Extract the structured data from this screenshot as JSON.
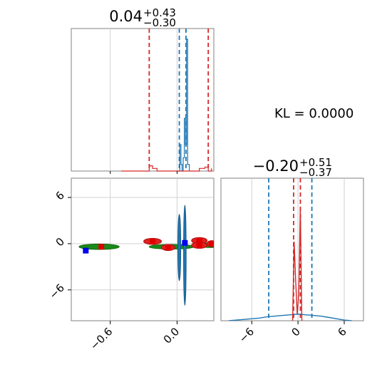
{
  "chart_data": [
    {
      "type": "histogram",
      "panel": "top-left",
      "title_main": "0.04",
      "title_sup": "+0.43",
      "title_sub": "−0.30",
      "xlim": [
        -0.95,
        0.33
      ],
      "grid": true,
      "blue_quantile_lines": [
        0.02,
        0.08
      ],
      "red_quantile_lines": [
        -0.25,
        0.28
      ],
      "series": [
        {
          "color": "#1f77b4",
          "x": [
            0.0,
            0.015,
            0.025,
            0.035,
            0.045,
            0.055,
            0.065,
            0.075,
            0.085,
            0.095,
            0.11
          ],
          "y": [
            0.0,
            0.0,
            0.2,
            0.05,
            0.0,
            0.1,
            0.4,
            0.2,
            1.0,
            0.05,
            0.0
          ]
        },
        {
          "color": "#d62728",
          "x": [
            -0.5,
            -0.35,
            -0.25,
            -0.22,
            -0.18,
            0.18,
            0.2,
            0.25,
            0.28,
            0.31
          ],
          "y": [
            0.0,
            0.0,
            0.04,
            0.02,
            0.0,
            0.0,
            0.02,
            0.03,
            0.0,
            0.02
          ]
        }
      ]
    },
    {
      "type": "scatter",
      "panel": "bottom-left",
      "xlim": [
        -0.95,
        0.33
      ],
      "ylim": [
        -10,
        8.5
      ],
      "xticks": [
        "−0.6",
        "0.0"
      ],
      "xtick_values": [
        -0.6,
        0.0
      ],
      "yticks": [
        "6",
        "0",
        "−6"
      ],
      "ytick_values": [
        6,
        0,
        -6
      ],
      "grid": true,
      "green_ellipses": [
        {
          "cx": -0.7,
          "cy": -0.4,
          "rx": 0.18,
          "ry": 0.35
        },
        {
          "cx": -0.05,
          "cy": -0.4,
          "rx": 0.2,
          "ry": 0.3
        },
        {
          "cx": 0.3,
          "cy": -0.2,
          "rx": 0.1,
          "ry": 0.3
        }
      ],
      "red_ellipses": [
        {
          "cx": -0.22,
          "cy": 0.3,
          "rx": 0.08,
          "ry": 0.4
        },
        {
          "cx": -0.08,
          "cy": -0.5,
          "rx": 0.06,
          "ry": 0.4
        },
        {
          "cx": 0.2,
          "cy": 0.4,
          "rx": 0.07,
          "ry": 0.4
        },
        {
          "cx": 0.2,
          "cy": -0.2,
          "rx": 0.07,
          "ry": 0.4
        },
        {
          "cx": 0.31,
          "cy": 0.0,
          "rx": 0.04,
          "ry": 0.4
        }
      ],
      "red_points": [
        [
          -0.22,
          0.3
        ],
        [
          -0.08,
          -0.5
        ],
        [
          0.2,
          0.4
        ],
        [
          0.2,
          -0.2
        ],
        [
          0.31,
          0.0
        ],
        [
          -0.68,
          -0.4
        ]
      ],
      "blue_points": [
        [
          -0.82,
          -0.9
        ],
        [
          0.07,
          0.1
        ]
      ],
      "blue_ellipse": {
        "cx": 0.02,
        "cy": -0.5,
        "rx": 0.01,
        "ry": 4.3
      },
      "blue_ellipse2": {
        "cx": 0.07,
        "cy": -1.5,
        "rx": 0.008,
        "ry": 6.5
      }
    },
    {
      "type": "histogram",
      "panel": "bottom-right",
      "title_main": "−0.20",
      "title_sup": "+0.51",
      "title_sub": "−0.37",
      "xlim": [
        -10,
        8.5
      ],
      "xticks": [
        "−6",
        "0",
        "6"
      ],
      "xtick_values": [
        -6,
        0,
        6
      ],
      "grid": true,
      "blue_quantile_lines": [
        -3.8,
        1.8
      ],
      "red_quantile_lines": [
        -0.57,
        0.31
      ],
      "series": [
        {
          "color": "#1f77b4",
          "x": [
            -9,
            -8,
            -7,
            -6,
            -5,
            -4,
            -3,
            -2,
            -1,
            0,
            1,
            2,
            3,
            4,
            5,
            6,
            7
          ],
          "y": [
            0.0,
            0.005,
            0.01,
            0.015,
            0.02,
            0.03,
            0.035,
            0.04,
            0.045,
            0.05,
            0.045,
            0.04,
            0.035,
            0.025,
            0.015,
            0.005,
            0.0
          ]
        },
        {
          "color": "#d62728",
          "x": [
            -0.7,
            -0.5,
            -0.3,
            -0.1,
            0.1,
            0.3,
            0.5
          ],
          "y": [
            0.0,
            0.6,
            0.3,
            0.05,
            0.2,
            0.85,
            0.0
          ]
        }
      ]
    }
  ],
  "annotation": {
    "text": "KL = 0.0000"
  }
}
